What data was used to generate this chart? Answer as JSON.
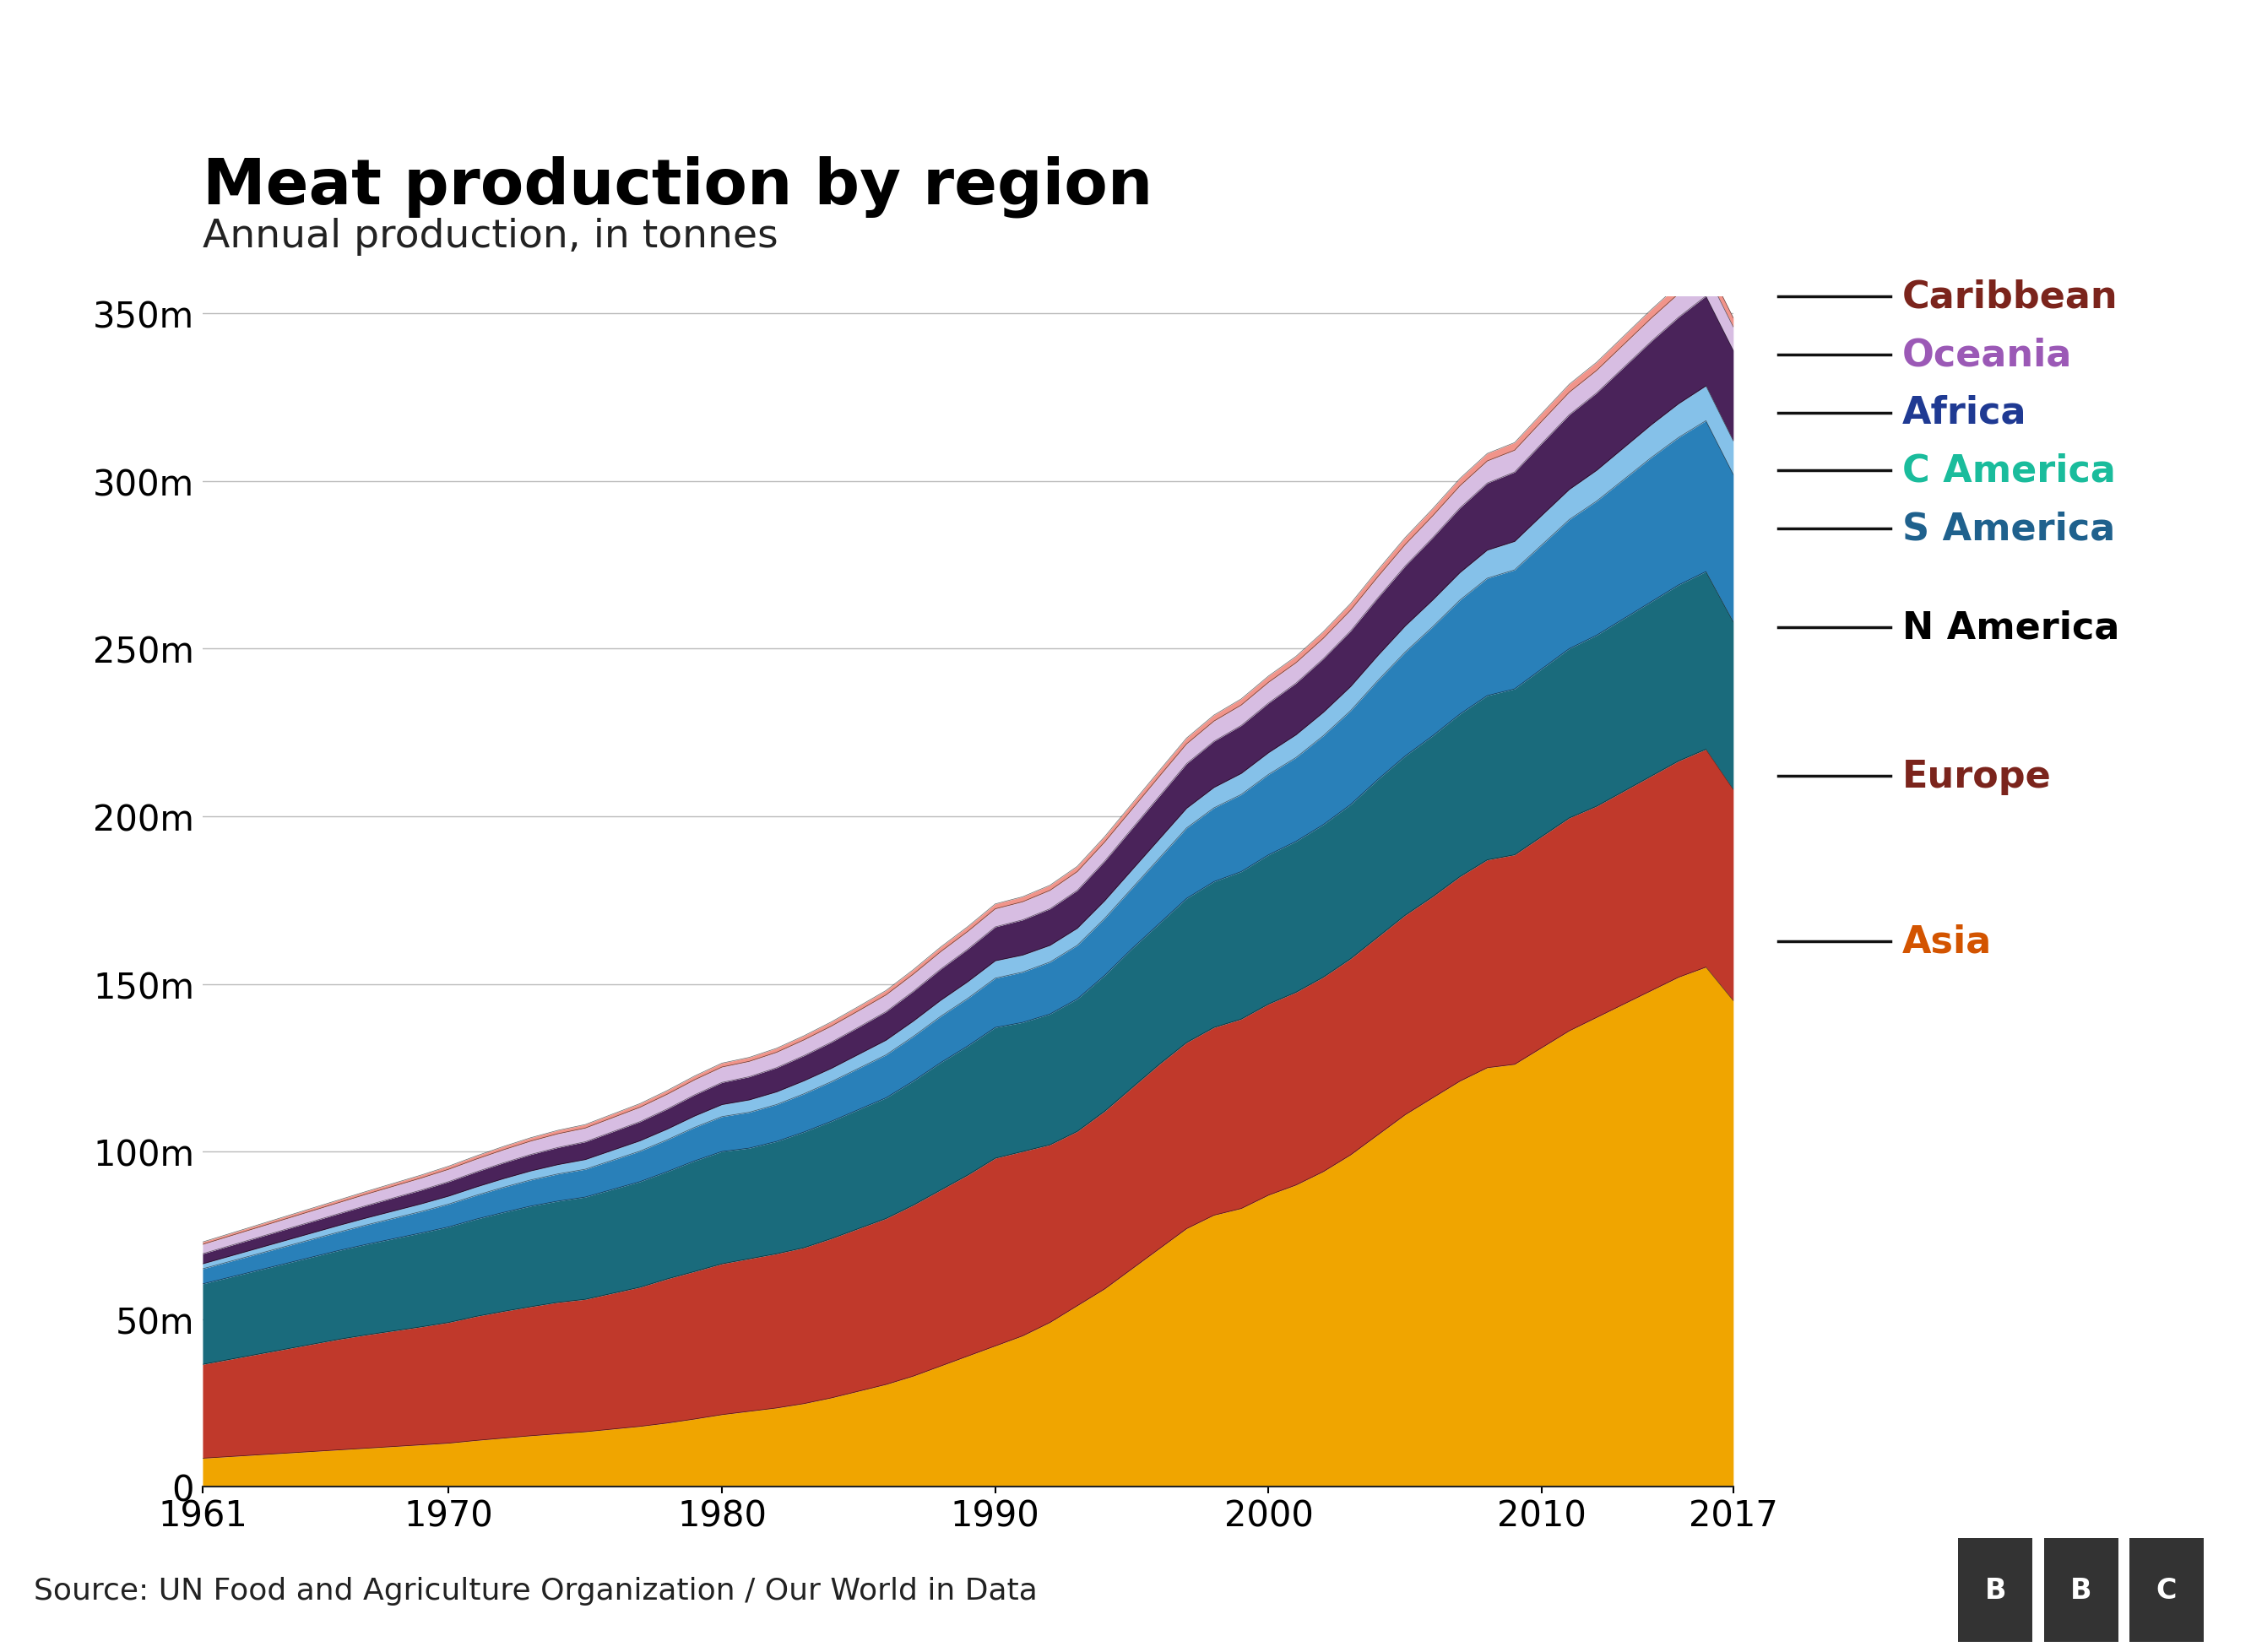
{
  "title": "Meat production by region",
  "subtitle": "Annual production, in tonnes",
  "source": "Source: UN Food and Agriculture Organization / Our World in Data",
  "years": [
    1961,
    1962,
    1963,
    1964,
    1965,
    1966,
    1967,
    1968,
    1969,
    1970,
    1971,
    1972,
    1973,
    1974,
    1975,
    1976,
    1977,
    1978,
    1979,
    1980,
    1981,
    1982,
    1983,
    1984,
    1985,
    1986,
    1987,
    1988,
    1989,
    1990,
    1991,
    1992,
    1993,
    1994,
    1995,
    1996,
    1997,
    1998,
    1999,
    2000,
    2001,
    2002,
    2003,
    2004,
    2005,
    2006,
    2007,
    2008,
    2009,
    2010,
    2011,
    2012,
    2013,
    2014,
    2015,
    2016,
    2017
  ],
  "stack_order": [
    "Asia",
    "Europe",
    "N America",
    "S America",
    "C America",
    "Africa",
    "Oceania",
    "Caribbean"
  ],
  "colors": {
    "Asia": "#F0A500",
    "Europe": "#C0392B",
    "N America": "#1A6B7C",
    "S America": "#2980B9",
    "C America": "#85C1E9",
    "Africa": "#4A235A",
    "Oceania": "#D7BDE2",
    "Caribbean": "#F1948A"
  },
  "legend_text_colors": {
    "Caribbean": "#7B241C",
    "Oceania": "#9B59B6",
    "Africa": "#1F3A93",
    "C America": "#1ABC9C",
    "S America": "#1F618D",
    "N America": "#000000",
    "Europe": "#7B241C",
    "Asia": "#D35400"
  },
  "data_millions": {
    "Asia": [
      8.5,
      9.0,
      9.5,
      10.0,
      10.5,
      11.0,
      11.5,
      12.0,
      12.5,
      13.0,
      13.8,
      14.5,
      15.2,
      15.8,
      16.4,
      17.2,
      18.0,
      19.0,
      20.2,
      21.5,
      22.5,
      23.5,
      24.8,
      26.5,
      28.5,
      30.5,
      33.0,
      36.0,
      39.0,
      42.0,
      45.0,
      49.0,
      54.0,
      59.0,
      65.0,
      71.0,
      77.0,
      81.0,
      83.0,
      87.0,
      90.0,
      94.0,
      99.0,
      105.0,
      111.0,
      116.0,
      121.0,
      125.0,
      126.0,
      131.0,
      136.0,
      140.0,
      144.0,
      148.0,
      152.0,
      155.0,
      145.0
    ],
    "Europe": [
      28.0,
      29.0,
      30.0,
      31.0,
      32.0,
      33.0,
      33.8,
      34.5,
      35.2,
      36.0,
      37.0,
      37.8,
      38.5,
      39.2,
      39.5,
      40.5,
      41.5,
      43.0,
      44.0,
      45.0,
      45.5,
      46.0,
      46.5,
      47.5,
      48.5,
      49.5,
      51.0,
      52.5,
      54.0,
      56.0,
      55.0,
      53.0,
      52.0,
      53.0,
      54.0,
      55.0,
      55.5,
      56.0,
      56.5,
      57.0,
      57.5,
      58.0,
      58.5,
      59.0,
      59.5,
      60.0,
      61.0,
      62.0,
      62.5,
      63.0,
      63.5,
      63.0,
      63.5,
      64.0,
      64.5,
      65.0,
      63.0
    ],
    "N America": [
      24.0,
      24.5,
      25.0,
      25.5,
      26.0,
      26.5,
      27.0,
      27.5,
      28.0,
      28.5,
      29.0,
      29.5,
      30.0,
      30.2,
      30.5,
      31.0,
      31.5,
      32.0,
      33.0,
      33.5,
      33.0,
      33.5,
      34.5,
      35.0,
      35.5,
      36.0,
      37.0,
      38.0,
      38.5,
      39.0,
      38.5,
      39.0,
      39.5,
      40.5,
      41.5,
      42.0,
      43.0,
      43.5,
      44.0,
      44.5,
      45.0,
      45.5,
      46.0,
      47.0,
      47.5,
      48.0,
      48.5,
      49.0,
      49.5,
      50.0,
      50.5,
      51.0,
      51.5,
      52.0,
      52.5,
      53.0,
      50.0
    ],
    "S America": [
      4.5,
      4.7,
      4.9,
      5.1,
      5.3,
      5.5,
      5.8,
      6.1,
      6.4,
      6.8,
      7.1,
      7.5,
      7.8,
      8.1,
      8.3,
      8.7,
      9.1,
      9.5,
      10.0,
      10.4,
      10.7,
      11.0,
      11.4,
      11.8,
      12.3,
      12.8,
      13.3,
      13.8,
      14.2,
      14.7,
      15.0,
      15.5,
      16.0,
      17.0,
      18.0,
      19.5,
      21.0,
      22.0,
      23.0,
      24.0,
      25.0,
      26.5,
      28.0,
      29.5,
      31.0,
      32.5,
      34.0,
      35.0,
      35.5,
      37.0,
      38.5,
      40.0,
      41.5,
      43.0,
      44.0,
      45.0,
      44.0
    ],
    "C America": [
      1.5,
      1.6,
      1.7,
      1.8,
      1.9,
      2.0,
      2.1,
      2.2,
      2.3,
      2.4,
      2.5,
      2.6,
      2.7,
      2.8,
      2.9,
      3.0,
      3.1,
      3.2,
      3.4,
      3.6,
      3.7,
      3.8,
      3.9,
      4.0,
      4.2,
      4.4,
      4.6,
      4.8,
      5.0,
      5.2,
      5.1,
      5.0,
      5.1,
      5.3,
      5.5,
      5.7,
      5.9,
      6.1,
      6.3,
      6.5,
      6.8,
      7.0,
      7.2,
      7.5,
      7.8,
      8.0,
      8.2,
      8.4,
      8.5,
      8.8,
      9.0,
      9.2,
      9.5,
      9.8,
      10.1,
      10.4,
      10.0
    ],
    "Africa": [
      3.0,
      3.1,
      3.2,
      3.3,
      3.4,
      3.5,
      3.7,
      3.9,
      4.1,
      4.3,
      4.5,
      4.7,
      4.9,
      5.1,
      5.3,
      5.5,
      5.7,
      6.0,
      6.3,
      6.6,
      6.9,
      7.2,
      7.5,
      7.8,
      8.1,
      8.5,
      8.9,
      9.3,
      9.7,
      10.1,
      10.5,
      10.9,
      11.3,
      11.8,
      12.3,
      12.8,
      13.3,
      13.8,
      14.3,
      14.8,
      15.4,
      16.0,
      16.6,
      17.2,
      17.9,
      18.6,
      19.3,
      20.0,
      20.7,
      21.5,
      22.3,
      23.1,
      24.0,
      24.9,
      25.8,
      26.8,
      27.0
    ],
    "Oceania": [
      2.8,
      2.9,
      3.0,
      3.1,
      3.2,
      3.3,
      3.4,
      3.5,
      3.6,
      3.7,
      3.8,
      3.9,
      4.0,
      4.1,
      4.1,
      4.2,
      4.3,
      4.4,
      4.5,
      4.6,
      4.6,
      4.6,
      4.7,
      4.8,
      4.9,
      5.0,
      5.1,
      5.2,
      5.3,
      5.4,
      5.4,
      5.5,
      5.6,
      5.7,
      5.8,
      5.9,
      5.9,
      6.0,
      6.1,
      6.2,
      6.1,
      6.1,
      6.2,
      6.3,
      6.4,
      6.5,
      6.6,
      6.6,
      6.5,
      6.6,
      6.7,
      6.7,
      6.8,
      6.9,
      7.0,
      7.1,
      7.0
    ],
    "Caribbean": [
      0.7,
      0.72,
      0.74,
      0.76,
      0.78,
      0.8,
      0.82,
      0.85,
      0.88,
      0.92,
      0.95,
      0.98,
      1.0,
      1.02,
      1.04,
      1.06,
      1.08,
      1.1,
      1.13,
      1.16,
      1.18,
      1.2,
      1.22,
      1.25,
      1.28,
      1.31,
      1.34,
      1.38,
      1.42,
      1.46,
      1.49,
      1.52,
      1.56,
      1.6,
      1.65,
      1.7,
      1.74,
      1.78,
      1.82,
      1.86,
      1.9,
      1.94,
      1.98,
      2.02,
      2.07,
      2.12,
      2.17,
      2.22,
      2.27,
      2.32,
      2.38,
      2.44,
      2.5,
      2.56,
      2.63,
      2.7,
      2.7
    ]
  }
}
